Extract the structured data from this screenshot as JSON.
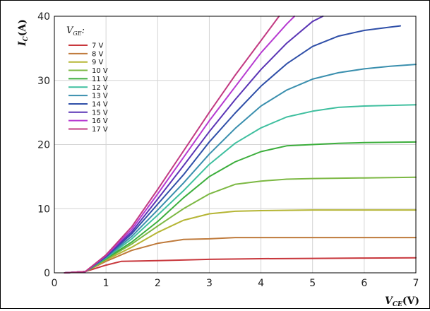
{
  "chart_data": {
    "type": "line",
    "title": "",
    "xlabel": {
      "main": "V",
      "sub": "CE",
      "unit": "(V)"
    },
    "ylabel": {
      "main": "I",
      "sub": "C",
      "unit": "(A)"
    },
    "xlim": [
      0,
      7
    ],
    "ylim": [
      0,
      40
    ],
    "xticks": [
      "0",
      "1",
      "2",
      "3",
      "4",
      "5",
      "6",
      "7"
    ],
    "yticks": [
      "0",
      "10",
      "20",
      "30",
      "40"
    ],
    "grid": true,
    "legend": {
      "title_main": "V",
      "title_sub": "GE",
      "title_suffix": ":",
      "placement": "top-left"
    },
    "series": [
      {
        "name": "7 V",
        "color": "#c8373c",
        "x": [
          0.2,
          0.6,
          1.0,
          1.3,
          2.0,
          3.0,
          4.0,
          5.0,
          6.0,
          7.0
        ],
        "y": [
          0,
          0.2,
          1.2,
          1.8,
          1.9,
          2.1,
          2.2,
          2.25,
          2.3,
          2.35
        ]
      },
      {
        "name": "8 V",
        "color": "#bf7a3b",
        "x": [
          0.2,
          0.6,
          1.0,
          1.5,
          2.0,
          2.5,
          3.0,
          3.5,
          4.0,
          5.0,
          6.0,
          7.0
        ],
        "y": [
          0,
          0.2,
          1.8,
          3.5,
          4.6,
          5.2,
          5.3,
          5.5,
          5.5,
          5.5,
          5.5,
          5.5
        ]
      },
      {
        "name": "9 V",
        "color": "#b5b534",
        "x": [
          0.2,
          0.6,
          1.0,
          1.5,
          2.0,
          2.5,
          3.0,
          3.5,
          4.0,
          5.0,
          6.0,
          7.0
        ],
        "y": [
          0,
          0.2,
          2.0,
          4.0,
          6.3,
          8.2,
          9.2,
          9.6,
          9.7,
          9.8,
          9.8,
          9.8
        ]
      },
      {
        "name": "10 V",
        "color": "#7cb843",
        "x": [
          0.2,
          0.6,
          1.0,
          1.5,
          2.0,
          2.5,
          3.0,
          3.5,
          4.0,
          4.5,
          5.0,
          6.0,
          7.0
        ],
        "y": [
          0,
          0.2,
          2.1,
          4.5,
          7.3,
          10.0,
          12.3,
          13.8,
          14.3,
          14.6,
          14.7,
          14.8,
          14.9
        ]
      },
      {
        "name": "11 V",
        "color": "#3cae3c",
        "x": [
          0.2,
          0.6,
          1.0,
          1.5,
          2.0,
          2.5,
          3.0,
          3.5,
          4.0,
          4.5,
          5.0,
          5.5,
          6.0,
          7.0
        ],
        "y": [
          0,
          0.2,
          2.2,
          4.8,
          8.0,
          11.7,
          15.0,
          17.3,
          18.9,
          19.8,
          20.0,
          20.2,
          20.3,
          20.4
        ]
      },
      {
        "name": "12 V",
        "color": "#3fbf9f",
        "x": [
          0.2,
          0.6,
          1.0,
          1.5,
          2.0,
          2.5,
          3.0,
          3.5,
          4.0,
          4.5,
          5.0,
          5.5,
          6.0,
          6.5,
          7.0
        ],
        "y": [
          0,
          0.2,
          2.3,
          5.3,
          9.0,
          12.8,
          16.9,
          20.2,
          22.6,
          24.3,
          25.2,
          25.8,
          26.0,
          26.1,
          26.2
        ]
      },
      {
        "name": "13 V",
        "color": "#3a8fae",
        "x": [
          0.2,
          0.6,
          1.0,
          1.5,
          2.0,
          2.5,
          3.0,
          3.5,
          4.0,
          4.5,
          5.0,
          5.5,
          6.0,
          6.5,
          7.0
        ],
        "y": [
          0,
          0.2,
          2.4,
          5.7,
          9.8,
          14.0,
          18.5,
          22.5,
          26.0,
          28.5,
          30.2,
          31.2,
          31.8,
          32.2,
          32.5
        ]
      },
      {
        "name": "14 V",
        "color": "#2f4fa8",
        "x": [
          0.2,
          0.6,
          1.0,
          1.5,
          2.0,
          2.5,
          3.0,
          3.5,
          4.0,
          4.5,
          5.0,
          5.5,
          6.0,
          6.5,
          6.7
        ],
        "y": [
          0,
          0.2,
          2.5,
          6.1,
          10.7,
          15.3,
          20.4,
          24.9,
          29.1,
          32.6,
          35.3,
          36.9,
          37.8,
          38.3,
          38.5
        ]
      },
      {
        "name": "15 V",
        "color": "#5a35b5",
        "x": [
          0.2,
          0.6,
          1.0,
          1.5,
          2.0,
          2.5,
          3.0,
          3.5,
          4.0,
          4.5,
          5.0,
          5.2
        ],
        "y": [
          0,
          0.2,
          2.6,
          6.4,
          11.5,
          16.7,
          22.0,
          27.0,
          31.7,
          35.8,
          39.2,
          40.0
        ]
      },
      {
        "name": "16 V",
        "color": "#b63ad1",
        "x": [
          0.2,
          0.6,
          1.0,
          1.5,
          2.0,
          2.5,
          3.0,
          3.5,
          4.0,
          4.5,
          4.65
        ],
        "y": [
          0,
          0.2,
          2.7,
          6.8,
          12.3,
          18.0,
          23.7,
          29.0,
          34.3,
          38.8,
          40.0
        ]
      },
      {
        "name": "17 V",
        "color": "#c23a82",
        "x": [
          0.2,
          0.6,
          1.0,
          1.5,
          2.0,
          2.5,
          3.0,
          3.5,
          4.0,
          4.35
        ],
        "y": [
          0,
          0.2,
          2.8,
          7.2,
          13.0,
          19.0,
          25.0,
          30.8,
          36.2,
          40.0
        ]
      }
    ]
  }
}
